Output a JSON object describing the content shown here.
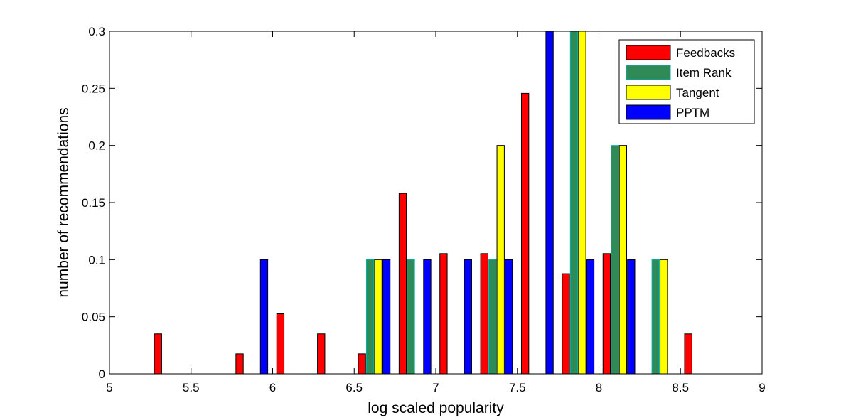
{
  "chart_data": {
    "type": "bar",
    "title": "",
    "xlabel": "log scaled popularity",
    "ylabel": "number of recommendations",
    "xlim": [
      5,
      9
    ],
    "ylim": [
      0,
      0.3
    ],
    "grid": false,
    "legend_position": "top-right",
    "x_ticks": [
      "5",
      "5.5",
      "6",
      "6.5",
      "7",
      "7.5",
      "8",
      "8.5",
      "9"
    ],
    "y_ticks": [
      "0",
      "0.05",
      "0.1",
      "0.15",
      "0.2",
      "0.25",
      "0.3"
    ],
    "x": [
      5.125,
      5.375,
      5.625,
      5.875,
      6.125,
      6.375,
      6.625,
      6.875,
      7.125,
      7.375,
      7.625,
      7.875,
      8.125,
      8.375,
      8.625,
      8.875
    ],
    "series": [
      {
        "name": "Feedbacks",
        "color": "#ff0000",
        "values": [
          0,
          0.035,
          0,
          0.0175,
          0.0526,
          0.035,
          0.0175,
          0.158,
          0.1053,
          0.1053,
          0.2456,
          0.0877,
          0.1053,
          0,
          0.035,
          0
        ]
      },
      {
        "name": "Item Rank",
        "color": "#2e8b57",
        "values": [
          0,
          0,
          0,
          0,
          0,
          0,
          0.1,
          0.1,
          0,
          0.1,
          0,
          0.3,
          0.2,
          0.1,
          0,
          0
        ]
      },
      {
        "name": "Tangent",
        "color": "#ffff00",
        "values": [
          0,
          0,
          0,
          0,
          0,
          0,
          0.1,
          0,
          0,
          0.2,
          0,
          0.3,
          0.2,
          0.1,
          0,
          0
        ]
      },
      {
        "name": "PPTM",
        "color": "#0000ff",
        "values": [
          0,
          0,
          0,
          0.1,
          0,
          0,
          0.1,
          0.1,
          0.1,
          0.1,
          0.3,
          0.1,
          0.1,
          0,
          0,
          0
        ]
      }
    ]
  }
}
